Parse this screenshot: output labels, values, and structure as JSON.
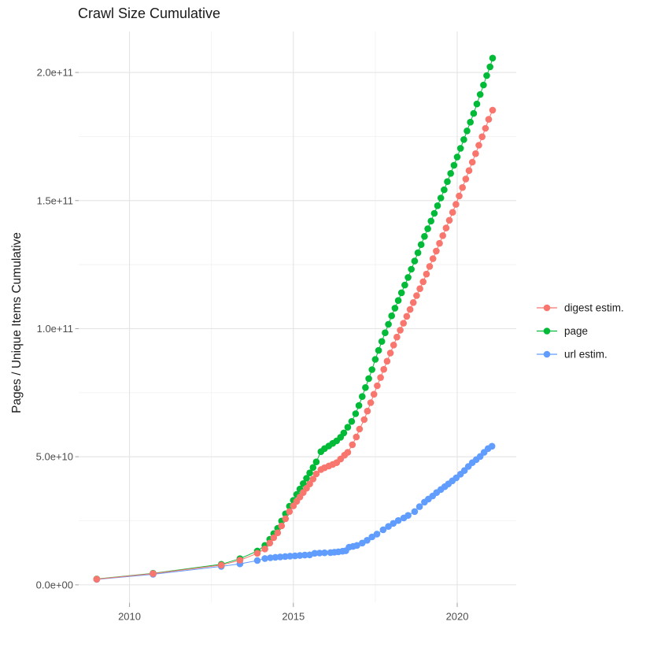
{
  "chart_data": {
    "type": "line",
    "title": "Crawl Size Cumulative",
    "xlabel": "",
    "ylabel": "Pages / Unique Items Cumulative",
    "value_unit": "1e9 (values stored in billions of pages / unique items)",
    "xlim": [
      2008.45,
      2021.8
    ],
    "ylim_billions": [
      -6.8,
      216
    ],
    "grid": true,
    "legend_position": "right",
    "x_ticks": {
      "values": [
        2010,
        2015,
        2020
      ],
      "labels": [
        "2010",
        "2015",
        "2020"
      ]
    },
    "x_minor": [
      2012.5,
      2017.5
    ],
    "y_ticks": {
      "values_billions": [
        0,
        50,
        100,
        150,
        200
      ],
      "labels": [
        "0.0e+00",
        "5.0e+10",
        "1.0e+11",
        "1.5e+11",
        "2.0e+11"
      ]
    },
    "y_minor_billions": [
      25,
      75,
      125,
      175
    ],
    "colors": {
      "grid_major": "#e4e4e4",
      "grid_minor": "#f2f2f2",
      "tick": "#a8a8a8",
      "axis_text": "#4d4d4d",
      "title_text": "#1a1a1a",
      "digest": "#F8766D",
      "page": "#00BA38",
      "url": "#619CFF"
    },
    "series": [
      {
        "name": "digest estim.",
        "color": "#F8766D",
        "points_year_billions": [
          [
            2009.0,
            2.2
          ],
          [
            2010.72,
            4.4
          ],
          [
            2012.8,
            7.7
          ],
          [
            2013.37,
            9.6
          ],
          [
            2013.9,
            12.3
          ],
          [
            2014.13,
            14.0
          ],
          [
            2014.28,
            16.3
          ],
          [
            2014.4,
            18.4
          ],
          [
            2014.52,
            20.3
          ],
          [
            2014.64,
            23.0
          ],
          [
            2014.76,
            25.8
          ],
          [
            2014.88,
            28.6
          ],
          [
            2015.0,
            30.8
          ],
          [
            2015.1,
            32.6
          ],
          [
            2015.2,
            34.3
          ],
          [
            2015.3,
            36.0
          ],
          [
            2015.4,
            37.7
          ],
          [
            2015.5,
            39.4
          ],
          [
            2015.6,
            41.3
          ],
          [
            2015.7,
            43.3
          ],
          [
            2015.84,
            45.0
          ],
          [
            2015.95,
            45.7
          ],
          [
            2016.08,
            46.4
          ],
          [
            2016.2,
            47.0
          ],
          [
            2016.32,
            47.7
          ],
          [
            2016.44,
            49.1
          ],
          [
            2016.56,
            50.6
          ],
          [
            2016.66,
            51.7
          ],
          [
            2016.8,
            54.7
          ],
          [
            2016.92,
            57.7
          ],
          [
            2017.02,
            60.8
          ],
          [
            2017.16,
            64.5
          ],
          [
            2017.26,
            67.8
          ],
          [
            2017.36,
            71.1
          ],
          [
            2017.46,
            74.4
          ],
          [
            2017.56,
            77.7
          ],
          [
            2017.66,
            80.9
          ],
          [
            2017.76,
            84.1
          ],
          [
            2017.86,
            87.3
          ],
          [
            2017.96,
            90.5
          ],
          [
            2018.06,
            93.6
          ],
          [
            2018.16,
            96.7
          ],
          [
            2018.26,
            99.4
          ],
          [
            2018.36,
            102.1
          ],
          [
            2018.46,
            104.8
          ],
          [
            2018.56,
            107.5
          ],
          [
            2018.66,
            110.2
          ],
          [
            2018.76,
            112.9
          ],
          [
            2018.86,
            115.6
          ],
          [
            2018.96,
            118.3
          ],
          [
            2019.06,
            121.3
          ],
          [
            2019.16,
            124.3
          ],
          [
            2019.26,
            127.3
          ],
          [
            2019.36,
            130.3
          ],
          [
            2019.46,
            133.3
          ],
          [
            2019.56,
            136.3
          ],
          [
            2019.66,
            139.3
          ],
          [
            2019.76,
            142.3
          ],
          [
            2019.86,
            145.4
          ],
          [
            2019.96,
            148.5
          ],
          [
            2020.06,
            151.8
          ],
          [
            2020.16,
            155.1
          ],
          [
            2020.26,
            158.4
          ],
          [
            2020.36,
            161.7
          ],
          [
            2020.46,
            165.0
          ],
          [
            2020.56,
            168.3
          ],
          [
            2020.66,
            171.6
          ],
          [
            2020.76,
            174.9
          ],
          [
            2020.86,
            178.2
          ],
          [
            2020.96,
            181.7
          ],
          [
            2021.08,
            185.3
          ]
        ]
      },
      {
        "name": "page",
        "color": "#00BA38",
        "points_year_billions": [
          [
            2009.0,
            2.3
          ],
          [
            2010.72,
            4.5
          ],
          [
            2012.8,
            8.0
          ],
          [
            2013.37,
            10.2
          ],
          [
            2013.9,
            13.2
          ],
          [
            2014.13,
            15.4
          ],
          [
            2014.28,
            17.8
          ],
          [
            2014.4,
            20.0
          ],
          [
            2014.52,
            22.1
          ],
          [
            2014.64,
            24.9
          ],
          [
            2014.76,
            27.7
          ],
          [
            2014.88,
            30.7
          ],
          [
            2015.0,
            33.0
          ],
          [
            2015.1,
            35.3
          ],
          [
            2015.2,
            37.4
          ],
          [
            2015.3,
            39.5
          ],
          [
            2015.4,
            41.6
          ],
          [
            2015.5,
            43.7
          ],
          [
            2015.6,
            45.8
          ],
          [
            2015.7,
            48.0
          ],
          [
            2015.84,
            52.0
          ],
          [
            2015.95,
            53.2
          ],
          [
            2016.08,
            54.2
          ],
          [
            2016.2,
            55.2
          ],
          [
            2016.32,
            56.2
          ],
          [
            2016.44,
            57.6
          ],
          [
            2016.54,
            59.3
          ],
          [
            2016.66,
            61.5
          ],
          [
            2016.78,
            63.8
          ],
          [
            2016.9,
            66.8
          ],
          [
            2017.0,
            70.0
          ],
          [
            2017.1,
            73.5
          ],
          [
            2017.2,
            77.0
          ],
          [
            2017.3,
            80.5
          ],
          [
            2017.4,
            84.0
          ],
          [
            2017.5,
            88.0
          ],
          [
            2017.6,
            91.5
          ],
          [
            2017.7,
            95.0
          ],
          [
            2017.8,
            98.4
          ],
          [
            2017.9,
            101.7
          ],
          [
            2018.0,
            105.0
          ],
          [
            2018.1,
            108.0
          ],
          [
            2018.2,
            111.0
          ],
          [
            2018.3,
            114.0
          ],
          [
            2018.4,
            117.0
          ],
          [
            2018.5,
            120.0
          ],
          [
            2018.6,
            123.2
          ],
          [
            2018.7,
            126.4
          ],
          [
            2018.8,
            129.6
          ],
          [
            2018.9,
            132.8
          ],
          [
            2019.0,
            136.0
          ],
          [
            2019.1,
            139.0
          ],
          [
            2019.2,
            142.0
          ],
          [
            2019.3,
            145.0
          ],
          [
            2019.4,
            148.0
          ],
          [
            2019.5,
            151.0
          ],
          [
            2019.6,
            154.2
          ],
          [
            2019.7,
            157.4
          ],
          [
            2019.8,
            160.6
          ],
          [
            2019.9,
            163.8
          ],
          [
            2020.0,
            167.0
          ],
          [
            2020.1,
            170.4
          ],
          [
            2020.2,
            173.8
          ],
          [
            2020.3,
            177.2
          ],
          [
            2020.4,
            180.6
          ],
          [
            2020.5,
            184.0
          ],
          [
            2020.6,
            187.7
          ],
          [
            2020.7,
            191.4
          ],
          [
            2020.8,
            195.1
          ],
          [
            2020.9,
            198.8
          ],
          [
            2021.0,
            202.2
          ],
          [
            2021.08,
            205.6
          ]
        ]
      },
      {
        "name": "url estim.",
        "color": "#619CFF",
        "points_year_billions": [
          [
            2009.0,
            2.1
          ],
          [
            2010.72,
            4.1
          ],
          [
            2012.8,
            7.2
          ],
          [
            2013.37,
            8.2
          ],
          [
            2013.9,
            9.5
          ],
          [
            2014.13,
            10.3
          ],
          [
            2014.3,
            10.55
          ],
          [
            2014.45,
            10.75
          ],
          [
            2014.6,
            10.9
          ],
          [
            2014.75,
            11.05
          ],
          [
            2014.9,
            11.2
          ],
          [
            2015.05,
            11.3
          ],
          [
            2015.2,
            11.45
          ],
          [
            2015.35,
            11.6
          ],
          [
            2015.5,
            11.7
          ],
          [
            2015.65,
            12.3
          ],
          [
            2015.8,
            12.4
          ],
          [
            2015.95,
            12.5
          ],
          [
            2016.13,
            12.6
          ],
          [
            2016.25,
            12.75
          ],
          [
            2016.37,
            12.9
          ],
          [
            2016.5,
            13.1
          ],
          [
            2016.6,
            13.3
          ],
          [
            2016.7,
            14.7
          ],
          [
            2016.82,
            15.0
          ],
          [
            2016.94,
            15.4
          ],
          [
            2017.1,
            16.3
          ],
          [
            2017.25,
            17.4
          ],
          [
            2017.4,
            18.7
          ],
          [
            2017.55,
            19.8
          ],
          [
            2017.74,
            21.5
          ],
          [
            2017.9,
            22.8
          ],
          [
            2018.05,
            24.0
          ],
          [
            2018.2,
            25.1
          ],
          [
            2018.37,
            26.1
          ],
          [
            2018.5,
            27.1
          ],
          [
            2018.7,
            28.6
          ],
          [
            2018.85,
            30.5
          ],
          [
            2019.0,
            32.3
          ],
          [
            2019.12,
            33.5
          ],
          [
            2019.25,
            34.7
          ],
          [
            2019.37,
            36.0
          ],
          [
            2019.5,
            37.2
          ],
          [
            2019.62,
            38.3
          ],
          [
            2019.73,
            39.4
          ],
          [
            2019.85,
            40.6
          ],
          [
            2019.97,
            41.8
          ],
          [
            2020.1,
            43.2
          ],
          [
            2020.22,
            44.6
          ],
          [
            2020.34,
            46.2
          ],
          [
            2020.46,
            47.7
          ],
          [
            2020.58,
            48.9
          ],
          [
            2020.7,
            50.1
          ],
          [
            2020.82,
            51.7
          ],
          [
            2020.94,
            53.2
          ],
          [
            2021.06,
            54.1
          ]
        ]
      }
    ]
  }
}
